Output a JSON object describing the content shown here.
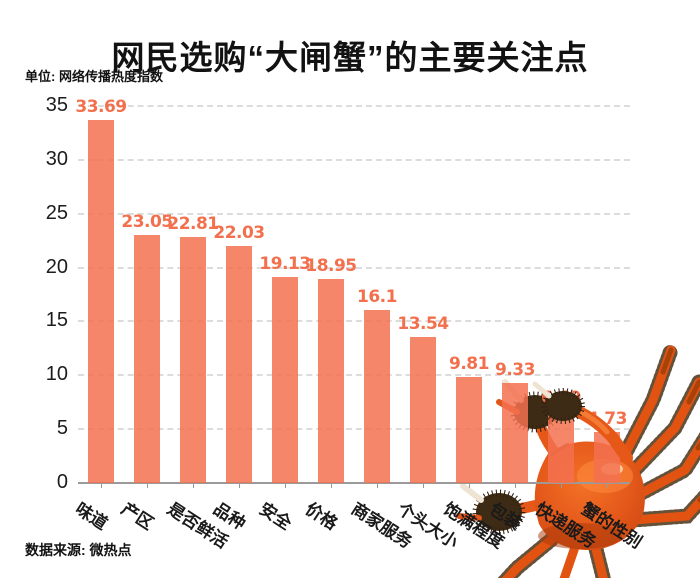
{
  "title": "网民选购“大闸蟹”的主要关注点",
  "unit_label": "单位: 网络传播热度指数",
  "source_label": "数据来源: 微热点",
  "colors": {
    "bar": "#F5866A",
    "value_label": "#F2704D",
    "gridline": "#DCDCDC",
    "axis": "#9A9A9A",
    "text": "#121212",
    "crab": "#E2511A"
  },
  "decoration": {
    "crab_image": "cooked hairy crab photo, bottom-right corner, legs overlapping the last three bars and x-axis labels"
  },
  "chart_data": {
    "type": "bar",
    "title": "网民选购“大闸蟹”的主要关注点",
    "unit": "网络传播热度指数",
    "categories": [
      "味道",
      "产区",
      "是否鲜活",
      "品种",
      "安全",
      "价格",
      "商家服务",
      "个头大小",
      "饱满程度",
      "包装",
      "快递服务",
      "蟹的性别"
    ],
    "values": [
      33.69,
      23.05,
      22.81,
      22.03,
      19.13,
      18.95,
      16.1,
      13.54,
      9.81,
      9.33,
      6.69,
      4.73
    ],
    "xlabel": "",
    "ylabel": "",
    "ylim": [
      0,
      35
    ],
    "yticks": [
      0,
      5,
      10,
      15,
      20,
      25,
      30,
      35
    ],
    "grid": "horizontal-dashed",
    "legend": "none",
    "value_labels": "above bars",
    "x_label_rotation_deg": 33,
    "source": "微热点"
  }
}
